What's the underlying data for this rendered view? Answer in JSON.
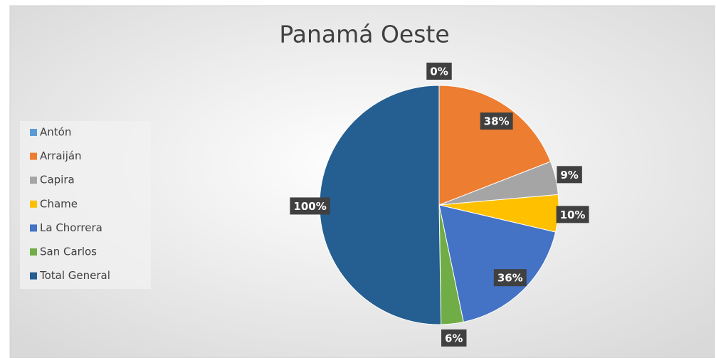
{
  "chart_data": {
    "type": "pie",
    "title": "Panamá Oeste",
    "categories": [
      "Antón",
      "Arraiján",
      "Capira",
      "Chame",
      "La Chorrera",
      "San Carlos",
      "Total General"
    ],
    "values": [
      0,
      38,
      9,
      10,
      36,
      6,
      100
    ],
    "value_labels": [
      "0%",
      "38%",
      "9%",
      "10%",
      "36%",
      "6%",
      "100%"
    ],
    "colors": [
      "#5b9bd5",
      "#ed7d31",
      "#a5a5a5",
      "#ffc000",
      "#4472c4",
      "#70ad47",
      "#255e91"
    ],
    "legend": "left"
  }
}
